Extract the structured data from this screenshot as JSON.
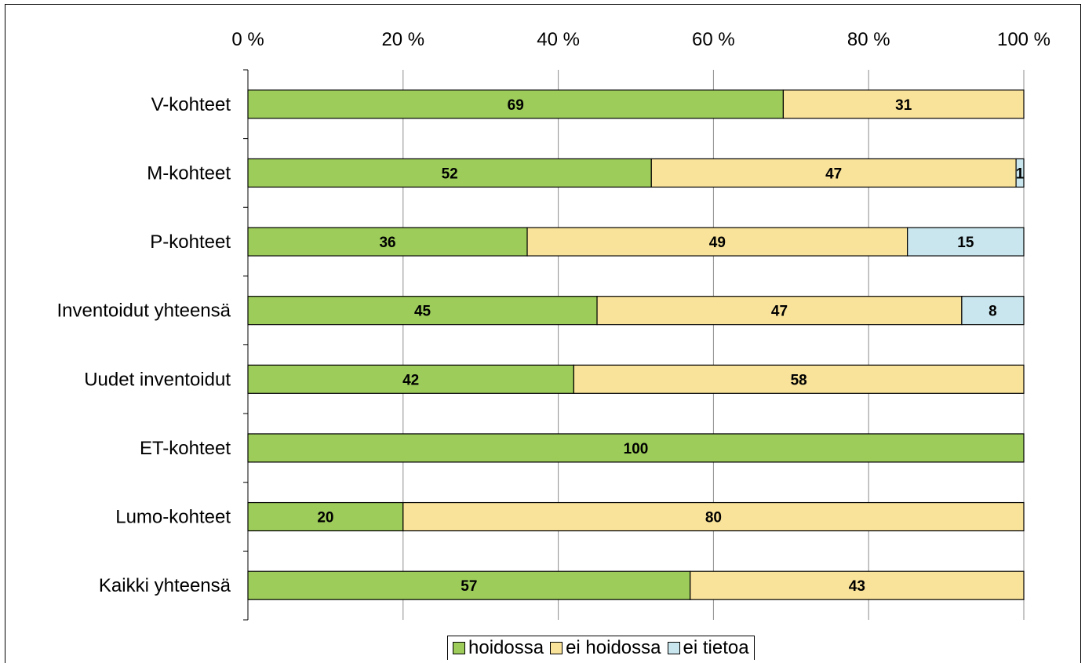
{
  "chart_data": {
    "type": "bar",
    "orientation": "horizontal",
    "stacked": "percent",
    "categories": [
      "V-kohteet",
      "M-kohteet",
      "P-kohteet",
      "Inventoidut yhteensä",
      "Uudet inventoidut",
      "ET-kohteet",
      "Lumo-kohteet",
      "Kaikki yhteensä"
    ],
    "series": [
      {
        "name": "hoidossa",
        "color": "#9dcc5a",
        "values": [
          69,
          52,
          36,
          45,
          42,
          100,
          20,
          57
        ]
      },
      {
        "name": "ei hoidossa",
        "color": "#f9e39a",
        "values": [
          31,
          47,
          49,
          47,
          58,
          0,
          80,
          43
        ]
      },
      {
        "name": "ei tietoa",
        "color": "#c9e6ee",
        "values": [
          0,
          1,
          15,
          8,
          0,
          0,
          0,
          0
        ]
      }
    ],
    "xlim": [
      0,
      100
    ],
    "x_ticks": [
      "0 %",
      "20 %",
      "40 %",
      "60 %",
      "80 %",
      "100 %"
    ],
    "x_axis_position": "top",
    "grid": true,
    "legend_position": "bottom"
  }
}
